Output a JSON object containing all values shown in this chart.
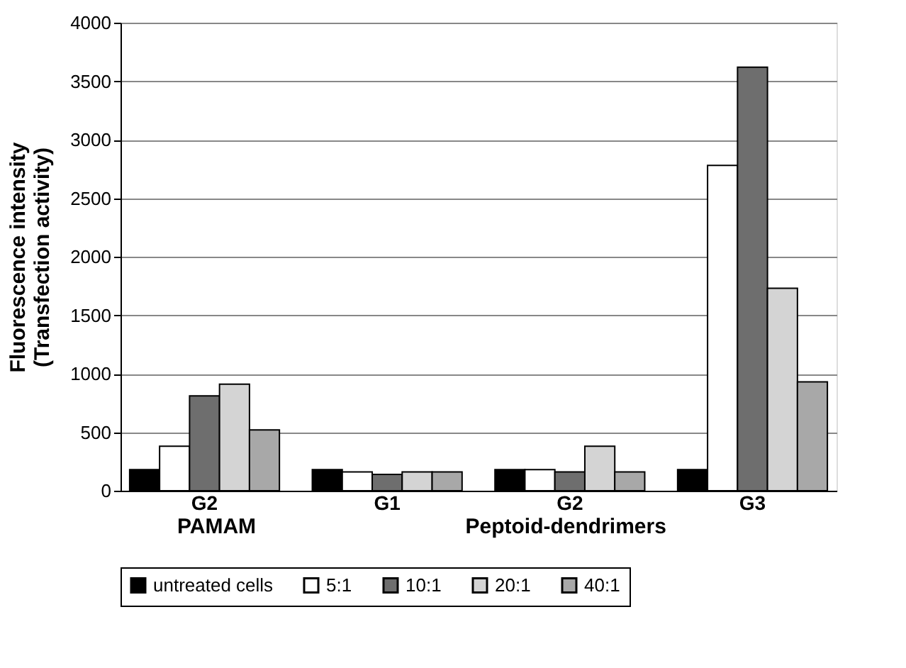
{
  "chart_data": {
    "type": "bar",
    "categories": [
      "G2",
      "G1",
      "G2",
      "G3"
    ],
    "ylabel": "Fluorescence intensity\n(Transfection activity)",
    "annotations": [
      "PAMAM",
      "Peptoid-dendrimers"
    ],
    "series": [
      {
        "name": "untreated cells",
        "color": "#000000",
        "values": [
          180,
          180,
          180,
          180
        ]
      },
      {
        "name": "5:1",
        "color": "#ffffff",
        "values": [
          380,
          160,
          180,
          2780
        ]
      },
      {
        "name": "10:1",
        "color": "#6e6e6e",
        "values": [
          810,
          140,
          160,
          3620
        ]
      },
      {
        "name": "20:1",
        "color": "#d4d4d4",
        "values": [
          910,
          160,
          380,
          1730
        ]
      },
      {
        "name": "40:1",
        "color": "#a8a8a8",
        "values": [
          520,
          160,
          160,
          930
        ]
      }
    ],
    "ylim": [
      0,
      4000
    ],
    "yticks": [
      0,
      500,
      1000,
      1500,
      2000,
      2500,
      3000,
      3500,
      4000
    ],
    "grid": "y",
    "legend": "bottom"
  }
}
